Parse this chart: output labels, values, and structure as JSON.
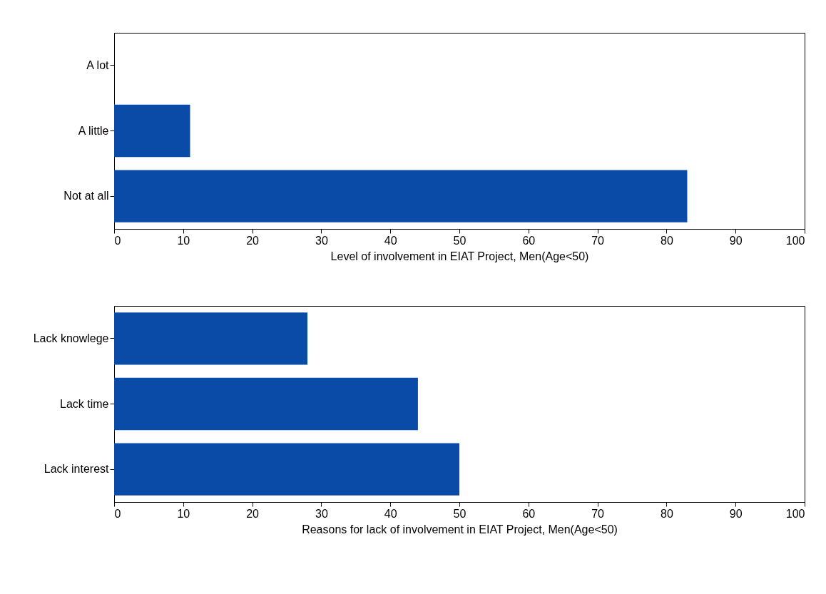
{
  "chart_data": [
    {
      "type": "bar",
      "orientation": "horizontal",
      "categories": [
        "A lot",
        "A little",
        "Not at all"
      ],
      "values": [
        0,
        11,
        83
      ],
      "color": "#0b4ba8",
      "xlim": [
        0,
        100
      ],
      "xticks": [
        0,
        10,
        20,
        30,
        40,
        50,
        60,
        70,
        80,
        90,
        100
      ],
      "xlabel": "Level of involvement in EIAT Project, Men(Age<50)",
      "grid": false
    },
    {
      "type": "bar",
      "orientation": "horizontal",
      "categories": [
        "Lack knowlege",
        "Lack time",
        "Lack interest"
      ],
      "values": [
        28,
        44,
        50
      ],
      "color": "#0b4ba8",
      "xlim": [
        0,
        100
      ],
      "xticks": [
        0,
        10,
        20,
        30,
        40,
        50,
        60,
        70,
        80,
        90,
        100
      ],
      "xlabel": "Reasons for lack of involvement in EIAT Project, Men(Age<50)",
      "grid": false
    }
  ]
}
